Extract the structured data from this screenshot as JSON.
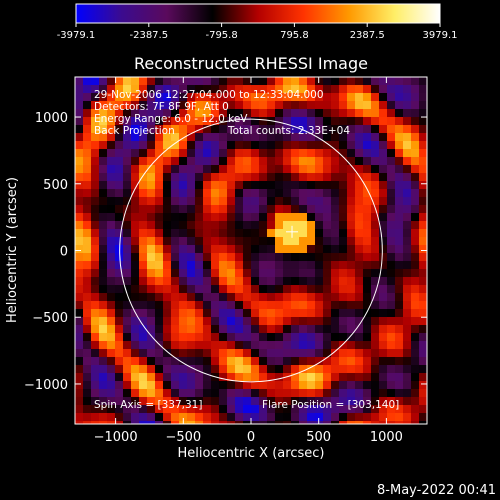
{
  "colorbar": {
    "tick_labels": [
      "-3979.1",
      "-2387.5",
      "-795.8",
      "795.8",
      "2387.5",
      "3979.1"
    ],
    "stops": [
      "#0000ff",
      "#3b0b8f",
      "#5a0a5c",
      "#000000",
      "#b30000",
      "#ff3300",
      "#ff9900",
      "#ffee66",
      "#ffffff"
    ]
  },
  "chart_data": {
    "type": "heatmap",
    "title": "Reconstructed RHESSI Image",
    "xlabel": "Heliocentric X (arcsec)",
    "ylabel": "Heliocentric Y (arcsec)",
    "xlim": [
      -1300,
      1300
    ],
    "ylim": [
      -1300,
      1300
    ],
    "xticks": [
      -1000,
      -500,
      0,
      500,
      1000
    ],
    "yticks": [
      -1000,
      -500,
      0,
      500,
      1000
    ],
    "zlim": [
      -3979.1,
      3979.1
    ],
    "solar_limb_radius_arcsec": 970,
    "flare_position": [
      303,
      140
    ],
    "annotations": {
      "time_range": "29-Nov-2006 12:27:04.000 to 12:33:04.000",
      "detectors": "Detectors: 7F 8F 9F, Att 0",
      "energy_range": "Energy Range: 6.0 - 12.0 keV",
      "method": "Back Projection",
      "total_counts": "Total counts: 2.33E+04",
      "spin_axis": "Spin Axis = [337,31]",
      "flare_position_label": "Flare Position = [303,140]"
    }
  },
  "timestamp": "8-May-2022 00:41"
}
